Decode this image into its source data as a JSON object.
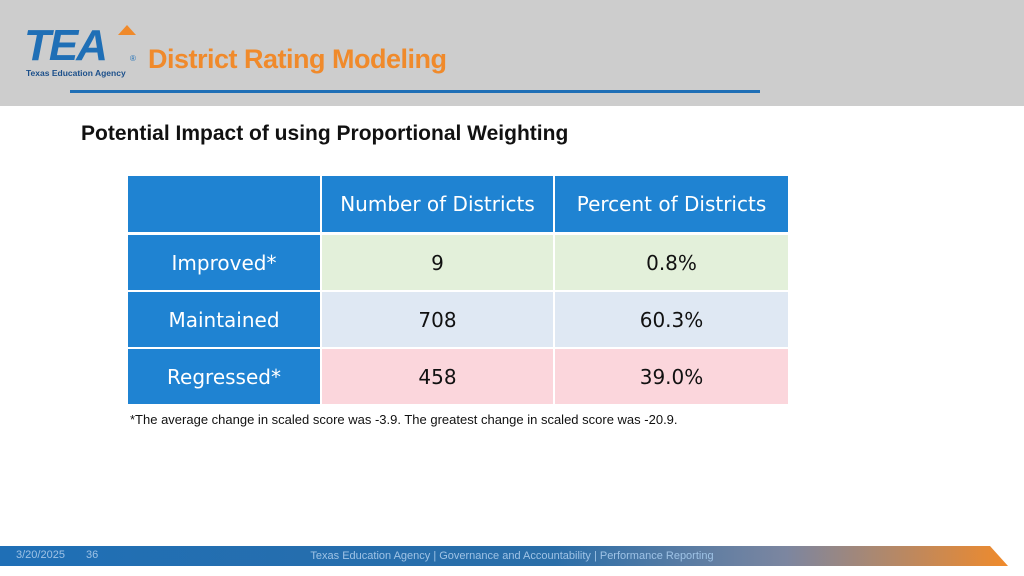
{
  "header": {
    "logo_word": "TEA",
    "logo_registered": "®",
    "logo_subtitle": "Texas Education Agency",
    "title": "District Rating Modeling"
  },
  "subtitle": "Potential Impact of using Proportional Weighting",
  "table": {
    "columns": [
      "",
      "Number of Districts",
      "Percent of Districts"
    ],
    "rows": [
      {
        "label": "Improved*",
        "number": "9",
        "percent": "0.8%",
        "tint": "#e3f0da"
      },
      {
        "label": "Maintained",
        "number": "708",
        "percent": "60.3%",
        "tint": "#dfe8f3"
      },
      {
        "label": "Regressed*",
        "number": "458",
        "percent": "39.0%",
        "tint": "#fbd6dc"
      }
    ]
  },
  "footnote": "*The average change in scaled score was -3.9. The greatest change in scaled score was -20.9.",
  "footer": {
    "date": "3/20/2025",
    "page": "36",
    "text": "Texas Education Agency | Governance and Accountability | Performance Reporting"
  },
  "colors": {
    "brand_blue": "#1f6fb6",
    "brand_orange": "#f08a2b",
    "header_bg": "#cdcdcd",
    "table_header": "#1f83d2"
  }
}
